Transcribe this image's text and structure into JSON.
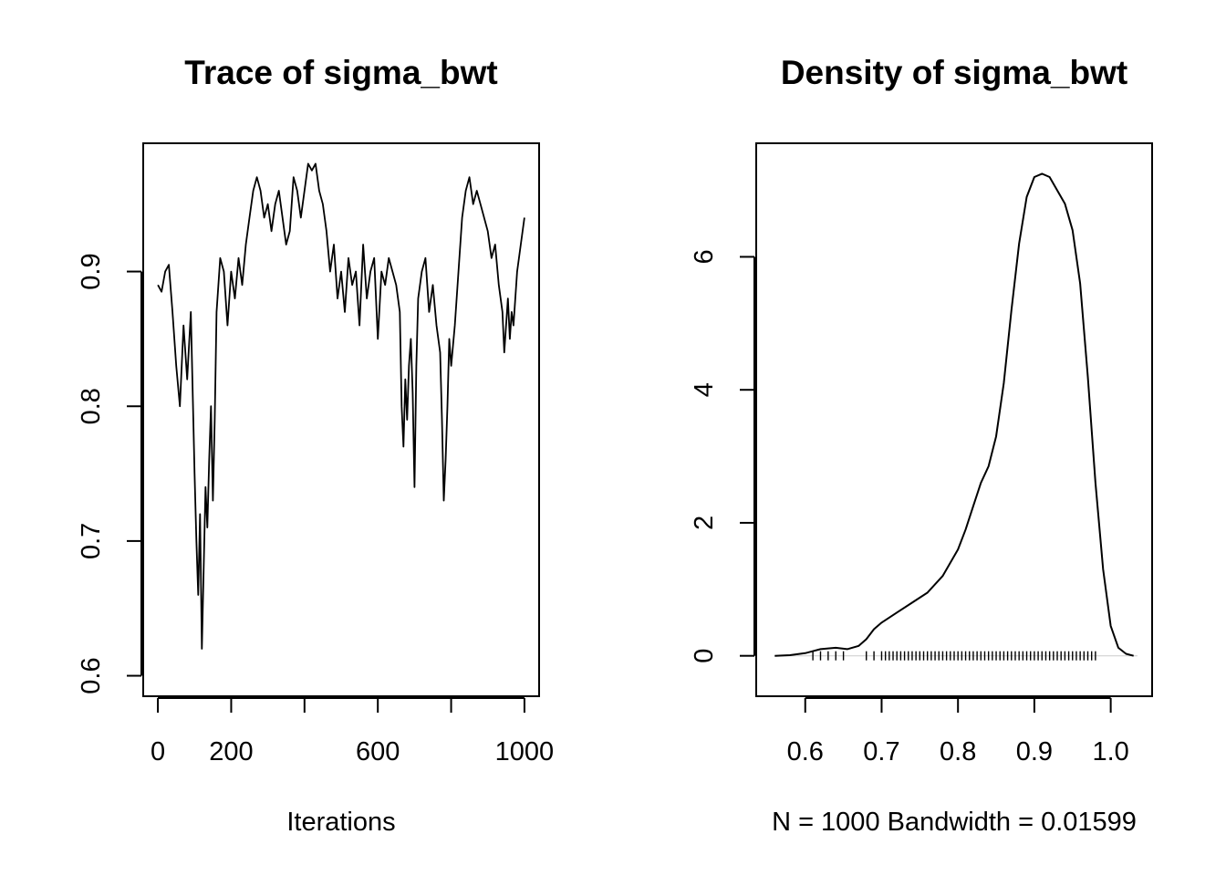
{
  "chart_data": [
    {
      "type": "line",
      "title": "Trace of sigma_bwt",
      "xlabel": "Iterations",
      "ylabel": "",
      "xlim": [
        0,
        1000
      ],
      "ylim": [
        0.6,
        0.98
      ],
      "x_ticks": [
        {
          "value": 0,
          "label": "0"
        },
        {
          "value": 200,
          "label": "200"
        },
        {
          "value": 400,
          "label": ""
        },
        {
          "value": 600,
          "label": "600"
        },
        {
          "value": 800,
          "label": ""
        },
        {
          "value": 1000,
          "label": "1000"
        }
      ],
      "y_ticks": [
        {
          "value": 0.6,
          "label": "0.6"
        },
        {
          "value": 0.7,
          "label": "0.7"
        },
        {
          "value": 0.8,
          "label": "0.8"
        },
        {
          "value": 0.9,
          "label": "0.9"
        }
      ],
      "grid": false,
      "series": [
        {
          "x": [
            0,
            10,
            20,
            30,
            40,
            50,
            60,
            70,
            80,
            90,
            100,
            105,
            110,
            115,
            120,
            125,
            130,
            135,
            140,
            145,
            150,
            155,
            160,
            170,
            180,
            190,
            200,
            210,
            220,
            230,
            240,
            250,
            260,
            270,
            280,
            290,
            300,
            310,
            320,
            330,
            340,
            350,
            360,
            370,
            380,
            390,
            400,
            410,
            420,
            430,
            440,
            450,
            460,
            470,
            480,
            490,
            500,
            510,
            520,
            530,
            540,
            550,
            560,
            570,
            580,
            590,
            600,
            610,
            620,
            630,
            640,
            650,
            660,
            665,
            670,
            675,
            680,
            685,
            690,
            695,
            700,
            705,
            710,
            720,
            730,
            740,
            750,
            760,
            770,
            775,
            780,
            785,
            790,
            795,
            800,
            810,
            820,
            830,
            840,
            850,
            860,
            870,
            880,
            890,
            900,
            910,
            920,
            930,
            940,
            945,
            950,
            955,
            960,
            965,
            970,
            980,
            990,
            1000
          ],
          "values": [
            0.89,
            0.885,
            0.9,
            0.905,
            0.87,
            0.83,
            0.8,
            0.86,
            0.82,
            0.87,
            0.75,
            0.7,
            0.66,
            0.72,
            0.62,
            0.68,
            0.74,
            0.71,
            0.76,
            0.8,
            0.73,
            0.79,
            0.87,
            0.91,
            0.9,
            0.86,
            0.9,
            0.88,
            0.91,
            0.89,
            0.92,
            0.94,
            0.96,
            0.97,
            0.96,
            0.94,
            0.95,
            0.93,
            0.95,
            0.96,
            0.94,
            0.92,
            0.93,
            0.97,
            0.96,
            0.94,
            0.96,
            0.98,
            0.975,
            0.98,
            0.96,
            0.95,
            0.93,
            0.9,
            0.92,
            0.88,
            0.9,
            0.87,
            0.91,
            0.89,
            0.9,
            0.86,
            0.92,
            0.88,
            0.9,
            0.91,
            0.85,
            0.9,
            0.89,
            0.91,
            0.9,
            0.89,
            0.87,
            0.8,
            0.77,
            0.82,
            0.79,
            0.83,
            0.85,
            0.81,
            0.74,
            0.83,
            0.88,
            0.9,
            0.91,
            0.87,
            0.89,
            0.86,
            0.84,
            0.79,
            0.73,
            0.76,
            0.8,
            0.85,
            0.83,
            0.86,
            0.9,
            0.94,
            0.96,
            0.97,
            0.95,
            0.96,
            0.95,
            0.94,
            0.93,
            0.91,
            0.92,
            0.89,
            0.87,
            0.84,
            0.86,
            0.88,
            0.85,
            0.87,
            0.86,
            0.9,
            0.92,
            0.94
          ]
        }
      ]
    },
    {
      "type": "line",
      "title": "Density of sigma_bwt",
      "xlabel": "N = 1000   Bandwidth = 0.01599",
      "ylabel": "",
      "xlim": [
        0.555,
        1.035
      ],
      "ylim": [
        -0.3,
        7.4
      ],
      "x_ticks": [
        {
          "value": 0.6,
          "label": "0.6"
        },
        {
          "value": 0.7,
          "label": "0.7"
        },
        {
          "value": 0.8,
          "label": "0.8"
        },
        {
          "value": 0.9,
          "label": "0.9"
        },
        {
          "value": 1.0,
          "label": "1.0"
        }
      ],
      "y_ticks": [
        {
          "value": 0,
          "label": "0"
        },
        {
          "value": 2,
          "label": "2"
        },
        {
          "value": 4,
          "label": "4"
        },
        {
          "value": 6,
          "label": "6"
        }
      ],
      "grid": false,
      "baseline": 0,
      "series": [
        {
          "x": [
            0.56,
            0.58,
            0.6,
            0.62,
            0.64,
            0.655,
            0.67,
            0.68,
            0.69,
            0.7,
            0.72,
            0.74,
            0.76,
            0.78,
            0.8,
            0.81,
            0.82,
            0.83,
            0.84,
            0.85,
            0.86,
            0.87,
            0.88,
            0.89,
            0.9,
            0.91,
            0.92,
            0.93,
            0.94,
            0.95,
            0.96,
            0.97,
            0.98,
            0.99,
            1.0,
            1.01,
            1.02,
            1.03
          ],
          "values": [
            0.0,
            0.01,
            0.04,
            0.1,
            0.12,
            0.1,
            0.15,
            0.25,
            0.4,
            0.5,
            0.65,
            0.8,
            0.95,
            1.2,
            1.6,
            1.9,
            2.25,
            2.6,
            2.85,
            3.3,
            4.1,
            5.2,
            6.2,
            6.9,
            7.2,
            7.25,
            7.2,
            7.0,
            6.8,
            6.4,
            5.6,
            4.2,
            2.6,
            1.3,
            0.45,
            0.12,
            0.03,
            0.0
          ]
        }
      ],
      "rug": [
        0.61,
        0.62,
        0.63,
        0.64,
        0.65,
        0.68,
        0.69,
        0.7,
        0.705,
        0.71,
        0.715,
        0.72,
        0.725,
        0.73,
        0.735,
        0.74,
        0.745,
        0.75,
        0.755,
        0.76,
        0.765,
        0.77,
        0.775,
        0.78,
        0.785,
        0.79,
        0.795,
        0.8,
        0.805,
        0.81,
        0.815,
        0.82,
        0.825,
        0.83,
        0.835,
        0.84,
        0.845,
        0.85,
        0.855,
        0.86,
        0.865,
        0.87,
        0.875,
        0.88,
        0.885,
        0.89,
        0.895,
        0.9,
        0.905,
        0.91,
        0.915,
        0.92,
        0.925,
        0.93,
        0.935,
        0.94,
        0.945,
        0.95,
        0.955,
        0.96,
        0.965,
        0.97,
        0.975,
        0.98
      ]
    }
  ]
}
